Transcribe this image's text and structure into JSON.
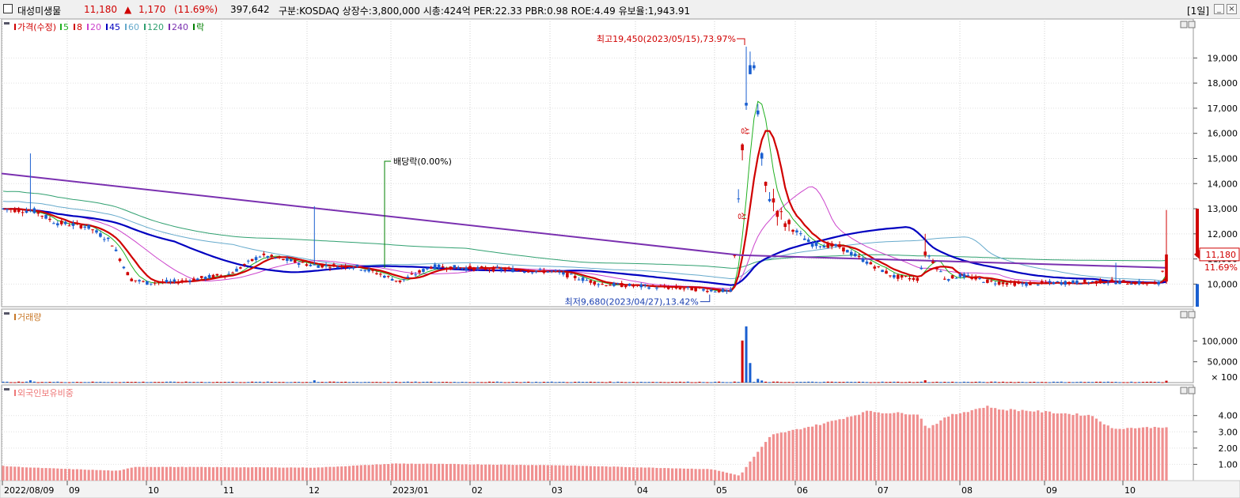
{
  "header": {
    "name": "대성미생물",
    "price": "11,180",
    "change_arrow": "▲",
    "change": "1,170",
    "change_pct": "(11.69%)",
    "volume": "397,642",
    "info": "구분:KOSDAQ 상장수:3,800,000 시총:424억 PER:22.33 PBR:0.98 ROE:4.49 유보율:1,943.91",
    "period_button": "[1일]"
  },
  "legend": {
    "price": [
      {
        "label": "가격(수정)",
        "color": "#d00000"
      },
      {
        "label": "5",
        "color": "#20b020"
      },
      {
        "label": "8",
        "color": "#d00000"
      },
      {
        "label": "20",
        "color": "#cc44cc"
      },
      {
        "label": "45",
        "color": "#0000c0"
      },
      {
        "label": "60",
        "color": "#66aacc"
      },
      {
        "label": "120",
        "color": "#30a070"
      },
      {
        "label": "240",
        "color": "#7a30b0"
      },
      {
        "label": "락",
        "color": "#008000"
      }
    ],
    "volume": {
      "label": "거래량",
      "color": "#c87828"
    },
    "foreign": {
      "label": "외국인보유비중",
      "color": "#ee7777"
    }
  },
  "chart_data": {
    "type": "candlestick",
    "x_ticks": [
      "2022/08/09",
      "09",
      "10",
      "11",
      "12",
      "2023/01",
      "02",
      "03",
      "04",
      "05",
      "06",
      "07",
      "08",
      "09",
      "10"
    ],
    "price_axis": {
      "ticks": [
        "19,000",
        "18,000",
        "17,000",
        "16,000",
        "15,000",
        "14,000",
        "13,000",
        "12,000",
        "11,000",
        "10,000"
      ],
      "ylim": [
        9100,
        20300
      ]
    },
    "volume_axis": {
      "ticks": [
        "100,000",
        "50,000"
      ],
      "unit": "× 100",
      "ylim": [
        0,
        150000
      ]
    },
    "foreign_axis": {
      "ticks": [
        "4.00",
        "3.00",
        "2.00",
        "1.00"
      ],
      "ylim": [
        0,
        5.2
      ]
    },
    "current_price": {
      "value": "11,180",
      "pct": "11.69%"
    },
    "annotations": {
      "high": "최고19,450(2023/05/15),73.97%",
      "low": "최저9,680(2023/04/27),13.42%",
      "dividend": "배당락(0.00%)",
      "limit_up": "상"
    },
    "key_points": [
      {
        "label": "start",
        "date": "2022/08/09",
        "close": 13000
      },
      {
        "label": "dividend",
        "date": "2022/12/28",
        "close": 10700
      },
      {
        "label": "low",
        "date": "2023/04/27",
        "close": 9680
      },
      {
        "label": "high",
        "date": "2023/05/15",
        "close": 19450
      },
      {
        "label": "last",
        "date": "2023/10/31",
        "close": 11180
      }
    ]
  }
}
